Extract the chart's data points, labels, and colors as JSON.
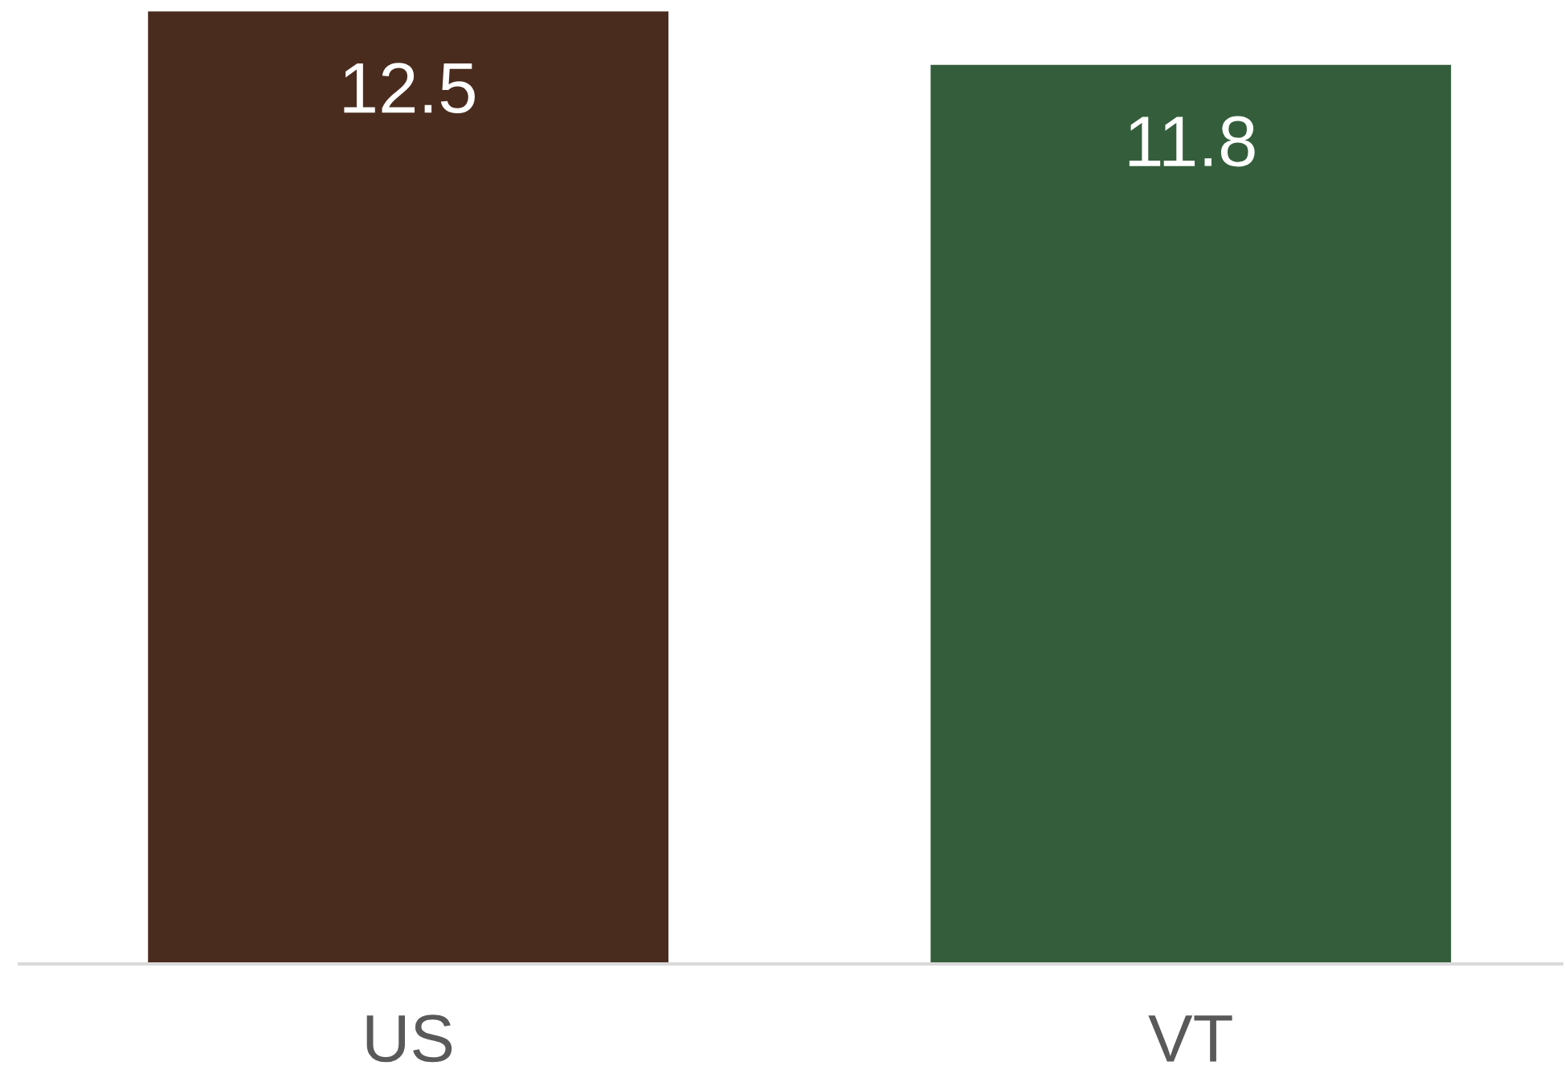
{
  "chart_data": {
    "type": "bar",
    "categories": [
      "US",
      "VT"
    ],
    "values": [
      12.5,
      11.8
    ],
    "colors": [
      "#4a2c1f",
      "#345e3b"
    ],
    "data_labels": true,
    "tick_labels": "x",
    "grid": false,
    "legend": false
  }
}
